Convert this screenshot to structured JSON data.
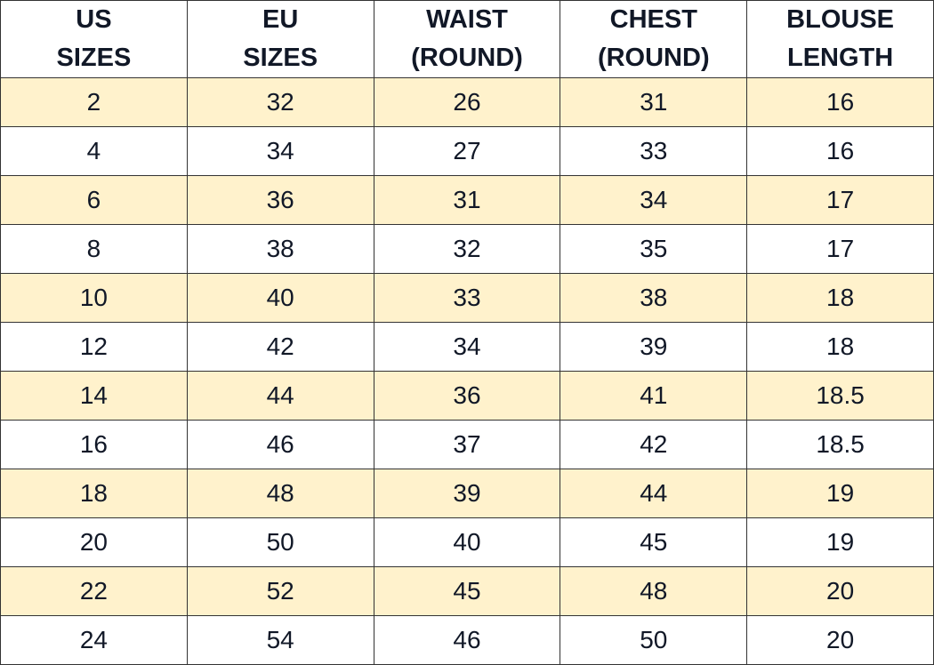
{
  "colors": {
    "highlight": "#FFF2CC",
    "text": "#111827",
    "border": "#333333"
  },
  "table": {
    "headers": [
      [
        "US",
        "SIZES"
      ],
      [
        "EU",
        "SIZES"
      ],
      [
        "WAIST",
        "(ROUND)"
      ],
      [
        "CHEST",
        "(ROUND)"
      ],
      [
        "BLOUSE",
        "LENGTH"
      ]
    ],
    "rows": [
      [
        "2",
        "32",
        "26",
        "31",
        "16"
      ],
      [
        "4",
        "34",
        "27",
        "33",
        "16"
      ],
      [
        "6",
        "36",
        "31",
        "34",
        "17"
      ],
      [
        "8",
        "38",
        "32",
        "35",
        "17"
      ],
      [
        "10",
        "40",
        "33",
        "38",
        "18"
      ],
      [
        "12",
        "42",
        "34",
        "39",
        "18"
      ],
      [
        "14",
        "44",
        "36",
        "41",
        "18.5"
      ],
      [
        "16",
        "46",
        "37",
        "42",
        "18.5"
      ],
      [
        "18",
        "48",
        "39",
        "44",
        "19"
      ],
      [
        "20",
        "50",
        "40",
        "45",
        "19"
      ],
      [
        "22",
        "52",
        "45",
        "48",
        "20"
      ],
      [
        "24",
        "54",
        "46",
        "50",
        "20"
      ]
    ]
  }
}
